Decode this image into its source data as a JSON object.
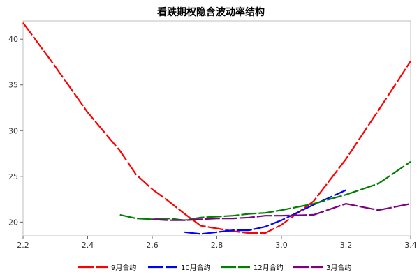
{
  "chart_data": {
    "type": "line",
    "title": "看跌期权隐含波动率结构",
    "xlabel": "",
    "ylabel": "",
    "xlim": [
      2.2,
      3.4
    ],
    "ylim": [
      18.5,
      42.0
    ],
    "x_ticks": [
      2.2,
      2.4,
      2.6,
      2.8,
      3.0,
      3.2,
      3.4
    ],
    "x_tick_labels": [
      "2.2",
      "2.4",
      "2.6",
      "2.8",
      "3.0",
      "3.2",
      "3.4"
    ],
    "y_ticks": [
      20,
      25,
      30,
      35,
      40
    ],
    "y_tick_labels": [
      "20",
      "25",
      "30",
      "35",
      "40"
    ],
    "grid": false,
    "legend_position": "bottom",
    "series": [
      {
        "name": "9月合约",
        "color": "#ff0000",
        "x": [
          2.2,
          2.3,
          2.4,
          2.5,
          2.55,
          2.6,
          2.65,
          2.7,
          2.75,
          2.8,
          2.85,
          2.9,
          2.95,
          3.0,
          3.1,
          3.2,
          3.3,
          3.4
        ],
        "values": [
          41.8,
          37.0,
          32.0,
          27.8,
          25.2,
          23.6,
          22.3,
          20.9,
          19.6,
          19.3,
          19.0,
          18.8,
          18.8,
          19.7,
          22.3,
          26.9,
          32.2,
          37.6
        ]
      },
      {
        "name": "10月合约",
        "color": "#0000ff",
        "x": [
          2.7,
          2.75,
          2.8,
          2.85,
          2.9,
          2.95,
          3.0,
          3.1,
          3.2
        ],
        "values": [
          18.9,
          18.7,
          18.9,
          19.1,
          19.1,
          19.5,
          20.2,
          21.9,
          23.5
        ]
      },
      {
        "name": "12月合约",
        "color": "#008000",
        "x": [
          2.5,
          2.55,
          2.6,
          2.65,
          2.7,
          2.75,
          2.8,
          2.85,
          2.9,
          2.95,
          3.0,
          3.1,
          3.2,
          3.3,
          3.4
        ],
        "values": [
          20.8,
          20.4,
          20.3,
          20.4,
          20.2,
          20.5,
          20.6,
          20.7,
          20.9,
          21.0,
          21.3,
          22.0,
          23.0,
          24.2,
          26.6
        ]
      },
      {
        "name": "3月合约",
        "color": "#800080",
        "x": [
          2.6,
          2.65,
          2.7,
          2.75,
          2.8,
          2.85,
          2.9,
          2.95,
          3.0,
          3.1,
          3.2,
          3.3,
          3.4
        ],
        "values": [
          20.3,
          20.2,
          20.2,
          20.3,
          20.4,
          20.4,
          20.5,
          20.7,
          20.7,
          20.8,
          22.0,
          21.3,
          22.0
        ]
      }
    ]
  }
}
